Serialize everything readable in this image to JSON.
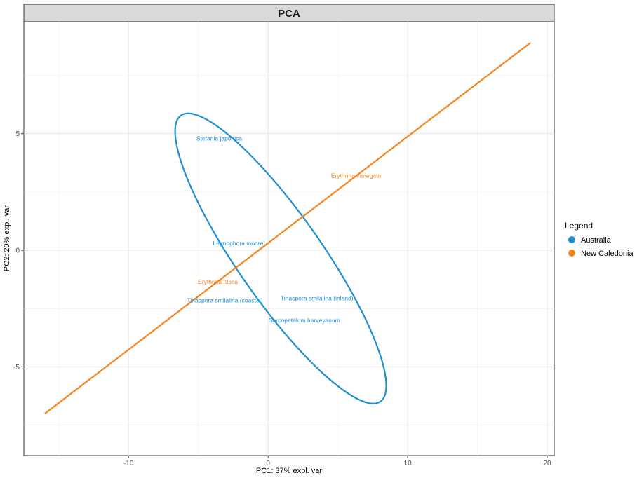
{
  "chart_data": {
    "type": "scatter",
    "title": "PCA",
    "xlabel": "PC1: 37% expl. var",
    "ylabel": "PC2: 20% expl. var",
    "xlim": [
      -17.5,
      20.5
    ],
    "ylim": [
      -8.8,
      9.8
    ],
    "x_ticks": [
      -10,
      0,
      10,
      20
    ],
    "x_tick_labels": [
      "-10",
      "0",
      "10",
      "20"
    ],
    "y_ticks": [
      -5,
      0,
      5
    ],
    "y_tick_labels": [
      "-5",
      "0",
      "5"
    ],
    "grid": true,
    "legend": {
      "title": "Legend",
      "position": "right",
      "entries": [
        {
          "name": "Australia",
          "color": "#1f8fd1"
        },
        {
          "name": "New Caledonia",
          "color": "#f5841f"
        }
      ]
    },
    "points": [
      {
        "label": "Stefania japonica",
        "x": -3.5,
        "y": 4.8,
        "group": "Australia"
      },
      {
        "label": "Erythrina variegata",
        "x": 6.3,
        "y": 3.2,
        "group": "New Caledonia"
      },
      {
        "label": "Legnophora moorei",
        "x": -2.1,
        "y": 0.3,
        "group": "Australia"
      },
      {
        "label": "Erythrina fusca",
        "x": -3.6,
        "y": -1.35,
        "group": "New Caledonia"
      },
      {
        "label": "Tinaspora smilalina (coastal)",
        "x": -3.1,
        "y": -2.15,
        "group": "Australia"
      },
      {
        "label": "Tinaspora smilalina (inland)",
        "x": 3.5,
        "y": -2.05,
        "group": "Australia"
      },
      {
        "label": "Sarcopetalum harveyanum",
        "x": 2.6,
        "y": -3.0,
        "group": "Australia"
      }
    ],
    "series": [
      {
        "name": "Australia",
        "type": "ellipse",
        "center": [
          0.9,
          -0.35
        ],
        "corners": [
          [
            -6.2,
            6.9
          ],
          [
            3.9,
            2.0
          ],
          [
            7.6,
            -5.5
          ],
          [
            -2.3,
            1.0
          ]
        ]
      },
      {
        "name": "New Caledonia",
        "type": "line",
        "x": [
          -16.0,
          18.8
        ],
        "y": [
          -7.0,
          8.9
        ]
      }
    ]
  }
}
